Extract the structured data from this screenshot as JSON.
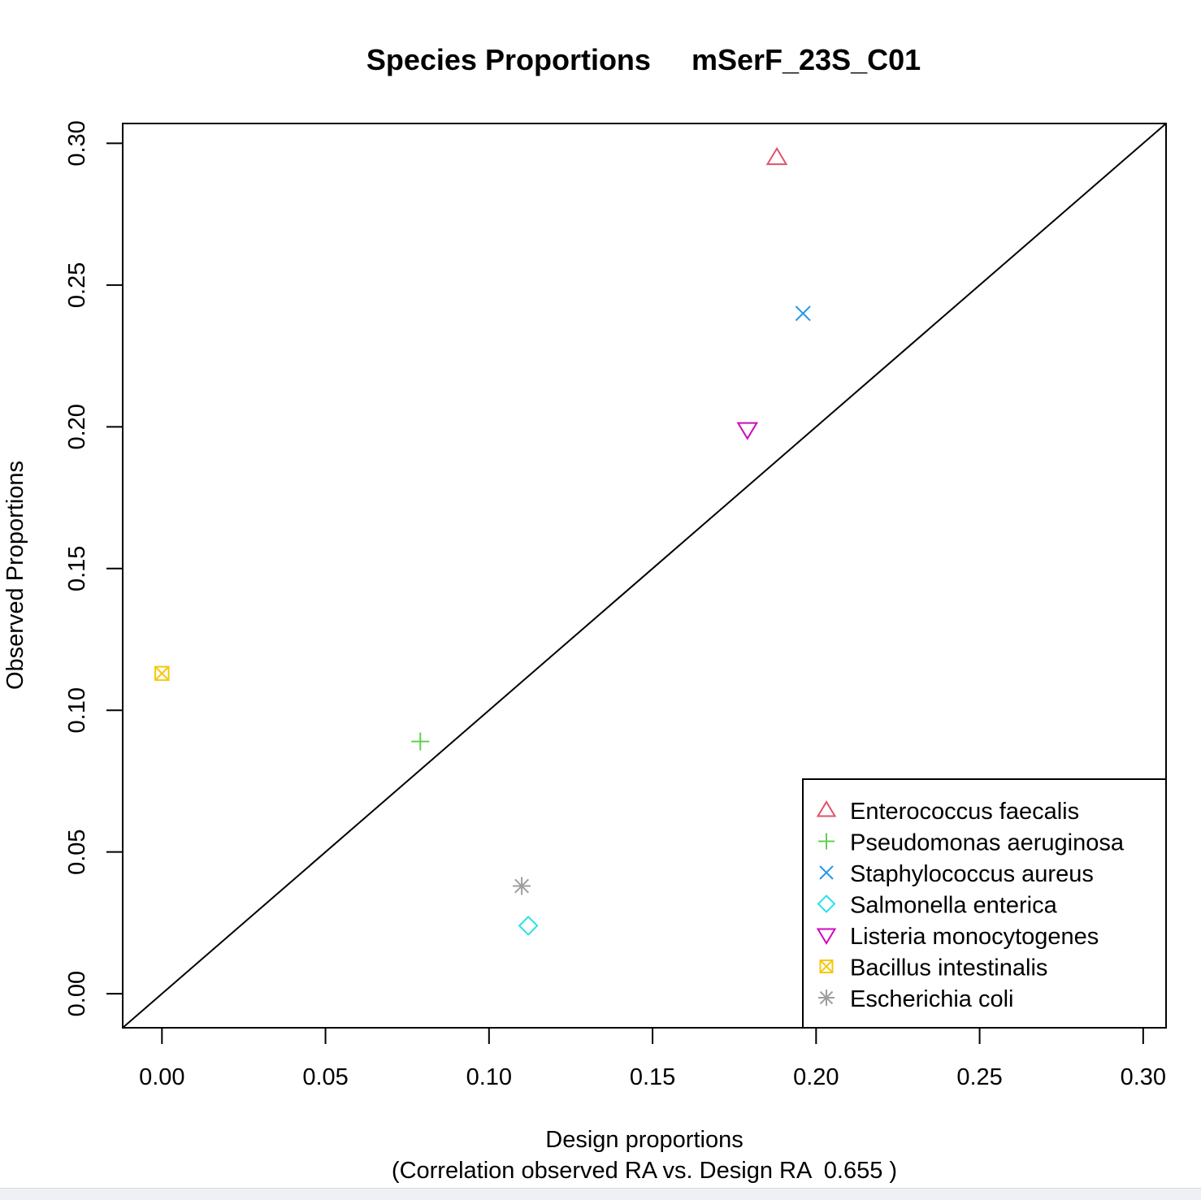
{
  "chart_data": {
    "type": "scatter",
    "title": "Species Proportions     mSerF_23S_C01",
    "xlabel": "Design proportions",
    "xlabel_sub": "(Correlation observed RA vs. Design RA  0.655 )",
    "ylabel": "Observed Proportions",
    "xlim": [
      -0.012,
      0.307
    ],
    "ylim": [
      -0.012,
      0.307
    ],
    "xticks": [
      0.0,
      0.05,
      0.1,
      0.15,
      0.2,
      0.25,
      0.3
    ],
    "yticks": [
      0.0,
      0.05,
      0.1,
      0.15,
      0.2,
      0.25,
      0.3
    ],
    "xtick_labels": [
      "0.00",
      "0.05",
      "0.10",
      "0.15",
      "0.20",
      "0.25",
      "0.30"
    ],
    "ytick_labels": [
      "0.00",
      "0.05",
      "0.10",
      "0.15",
      "0.20",
      "0.25",
      "0.30"
    ],
    "reference_line": "y = x",
    "grid": false,
    "legend_position": "bottom-right",
    "series": [
      {
        "name": "Enterococcus faecalis",
        "marker": "triangle-up",
        "color": "#DF536B",
        "x": 0.188,
        "y": 0.295
      },
      {
        "name": "Pseudomonas aeruginosa",
        "marker": "plus",
        "color": "#61D04F",
        "x": 0.079,
        "y": 0.089
      },
      {
        "name": "Staphylococcus aureus",
        "marker": "cross",
        "color": "#2297E6",
        "x": 0.196,
        "y": 0.24
      },
      {
        "name": "Salmonella enterica",
        "marker": "diamond",
        "color": "#28E2E5",
        "x": 0.112,
        "y": 0.024
      },
      {
        "name": "Listeria monocytogenes",
        "marker": "triangle-down",
        "color": "#CD0BBC",
        "x": 0.179,
        "y": 0.199
      },
      {
        "name": "Bacillus intestinalis",
        "marker": "square-x",
        "color": "#F5C710",
        "x": 0.0,
        "y": 0.113
      },
      {
        "name": "Escherichia coli",
        "marker": "asterisk",
        "color": "#9E9E9E",
        "x": 0.11,
        "y": 0.038
      }
    ]
  }
}
